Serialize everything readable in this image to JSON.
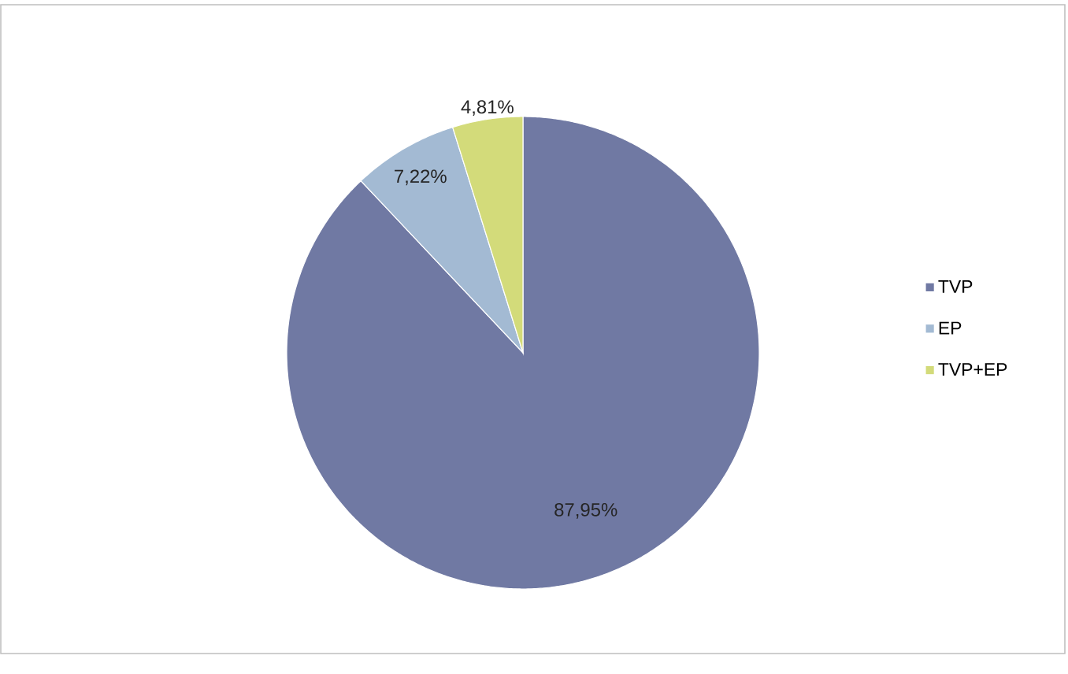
{
  "chart_data": {
    "type": "pie",
    "categories": [
      "TVP",
      "EP",
      "TVP+EP"
    ],
    "values": [
      87.95,
      7.22,
      4.81
    ],
    "value_labels": [
      "87,95%",
      "7,22%",
      "4,81%"
    ],
    "colors": [
      "#7079a3",
      "#a3bad3",
      "#d3db7a"
    ],
    "legend": "right"
  }
}
